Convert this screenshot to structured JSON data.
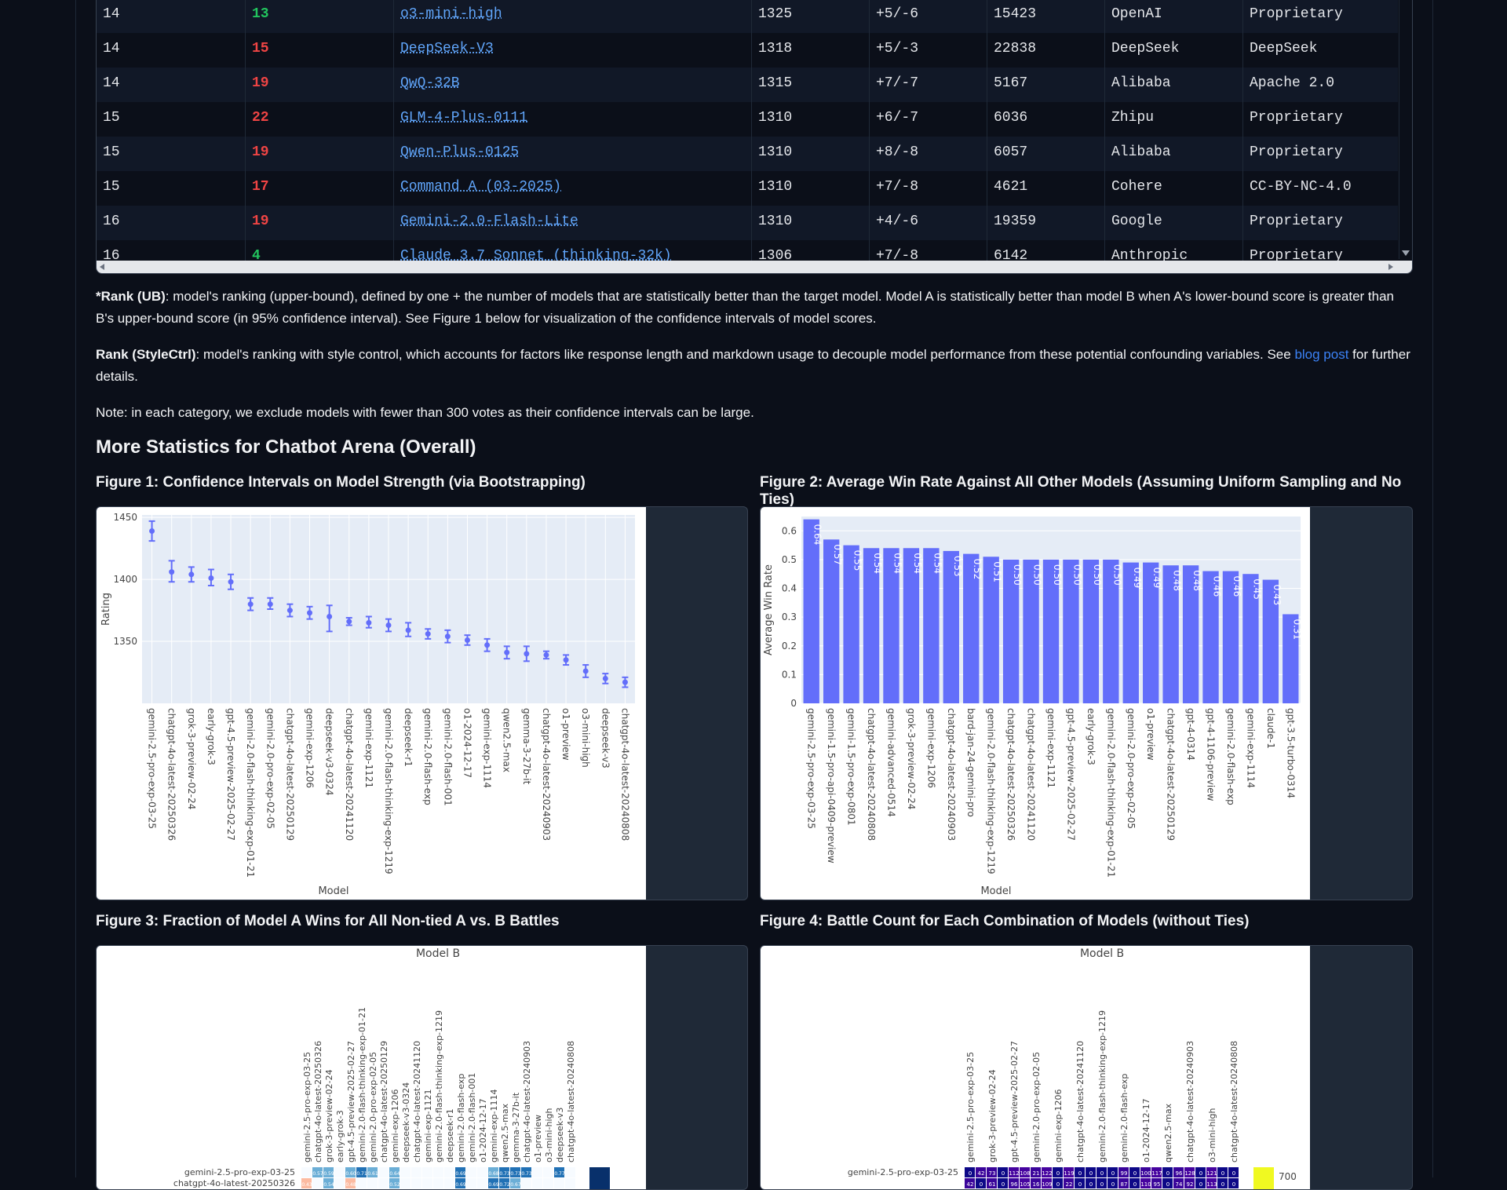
{
  "table": {
    "rows": [
      {
        "rank": "14",
        "rank_style": "13",
        "rank_style_color": "#22c55e",
        "model": "o3-mini-high",
        "score": "1325",
        "ci": "+5/-6",
        "votes": "15423",
        "org": "OpenAI",
        "license": "Proprietary"
      },
      {
        "rank": "14",
        "rank_style": "15",
        "rank_style_color": "#ef4444",
        "model": "DeepSeek-V3",
        "score": "1318",
        "ci": "+5/-3",
        "votes": "22838",
        "org": "DeepSeek",
        "license": "DeepSeek"
      },
      {
        "rank": "14",
        "rank_style": "19",
        "rank_style_color": "#ef4444",
        "model": "QwQ-32B",
        "score": "1315",
        "ci": "+7/-7",
        "votes": "5167",
        "org": "Alibaba",
        "license": "Apache 2.0"
      },
      {
        "rank": "15",
        "rank_style": "22",
        "rank_style_color": "#ef4444",
        "model": "GLM-4-Plus-0111",
        "score": "1310",
        "ci": "+6/-7",
        "votes": "6036",
        "org": "Zhipu",
        "license": "Proprietary"
      },
      {
        "rank": "15",
        "rank_style": "19",
        "rank_style_color": "#ef4444",
        "model": "Qwen-Plus-0125",
        "score": "1310",
        "ci": "+8/-8",
        "votes": "6057",
        "org": "Alibaba",
        "license": "Proprietary"
      },
      {
        "rank": "15",
        "rank_style": "17",
        "rank_style_color": "#ef4444",
        "model": "Command A (03-2025)",
        "score": "1310",
        "ci": "+7/-8",
        "votes": "4621",
        "org": "Cohere",
        "license": "CC-BY-NC-4.0"
      },
      {
        "rank": "16",
        "rank_style": "19",
        "rank_style_color": "#ef4444",
        "model": "Gemini-2.0-Flash-Lite",
        "score": "1310",
        "ci": "+4/-6",
        "votes": "19359",
        "org": "Google",
        "license": "Proprietary"
      },
      {
        "rank": "16",
        "rank_style": "4",
        "rank_style_color": "#22c55e",
        "model": "Claude 3.7 Sonnet (thinking-32k)",
        "score": "1306",
        "ci": "+7/-8",
        "votes": "6142",
        "org": "Anthropic",
        "license": "Proprietary"
      }
    ]
  },
  "notes": {
    "rank_ub_label": "*Rank (UB)",
    "rank_ub_text": ": model's ranking (upper-bound), defined by one + the number of models that are statistically better than the target model. Model A is statistically better than model B when A's lower-bound score is greater than B's upper-bound score (in 95% confidence interval). See Figure 1 below for visualization of the confidence intervals of model scores.",
    "rank_style_label": "Rank (StyleCtrl)",
    "rank_style_text": ": model's ranking with style control, which accounts for factors like response length and markdown usage to decouple model performance from these potential confounding variables. See ",
    "blog_link": "blog post",
    "rank_style_tail": " for further details.",
    "note": "Note: in each category, we exclude models with fewer than 300 votes as their confidence intervals can be large."
  },
  "section_title": "More Statistics for Chatbot Arena (Overall)",
  "figures": {
    "fig1_title": "Figure 1: Confidence Intervals on Model Strength (via Bootstrapping)",
    "fig2_title": "Figure 2: Average Win Rate Against All Other Models (Assuming Uniform Sampling and No Ties)",
    "fig3_title": "Figure 3: Fraction of Model A Wins for All Non-tied A vs. B Battles",
    "fig4_title": "Figure 4: Battle Count for Each Combination of Models (without Ties)"
  },
  "chart_data": [
    {
      "type": "scatter",
      "title": "",
      "xlabel": "Model",
      "ylabel": "Rating",
      "ylim": [
        1300,
        1452
      ],
      "yticks": [
        1350,
        1400,
        1450
      ],
      "grid": true,
      "categories": [
        "gemini-2.5-pro-exp-03-25",
        "chatgpt-4o-latest-20250326",
        "grok-3-preview-02-24",
        "early-grok-3",
        "gpt-4.5-preview-2025-02-27",
        "gemini-2.0-flash-thinking-exp-01-21",
        "gemini-2.0-pro-exp-02-05",
        "chatgpt-4o-latest-20250129",
        "gemini-exp-1206",
        "deepseek-v3-0324",
        "chatgpt-4o-latest-20241120",
        "gemini-exp-1121",
        "gemini-2.0-flash-thinking-exp-1219",
        "deepseek-r1",
        "gemini-2.0-flash-exp",
        "gemini-2.0-flash-001",
        "o1-2024-12-17",
        "gemini-exp-1114",
        "qwen2.5-max",
        "gemma-3-27b-it",
        "chatgpt-4o-latest-20240903",
        "o1-preview",
        "o3-mini-high",
        "deepseek-v3",
        "chatgpt-4o-latest-20240808"
      ],
      "y": [
        1439,
        1406,
        1404,
        1401,
        1398,
        1380,
        1380,
        1375,
        1373,
        1370,
        1366,
        1365,
        1363,
        1359,
        1356,
        1354,
        1351,
        1347,
        1341,
        1340,
        1339,
        1335,
        1326,
        1320,
        1317
      ],
      "upper": [
        1447,
        1415,
        1410,
        1408,
        1404,
        1385,
        1385,
        1380,
        1378,
        1379,
        1369,
        1370,
        1368,
        1365,
        1360,
        1359,
        1355,
        1352,
        1346,
        1346,
        1342,
        1339,
        1331,
        1324,
        1321
      ],
      "lower": [
        1431,
        1398,
        1398,
        1395,
        1392,
        1375,
        1376,
        1370,
        1368,
        1358,
        1363,
        1361,
        1358,
        1354,
        1352,
        1349,
        1347,
        1342,
        1336,
        1334,
        1336,
        1331,
        1321,
        1316,
        1313
      ]
    },
    {
      "type": "bar",
      "title": "",
      "xlabel": "Model",
      "ylabel": "Average Win Rate",
      "ylim": [
        0,
        0.65
      ],
      "yticks": [
        0,
        0.1,
        0.2,
        0.3,
        0.4,
        0.5,
        0.6
      ],
      "categories": [
        "gemini-2.5-pro-exp-03-25",
        "gemini-1.5-pro-api-0409-preview",
        "gemini-1.5-pro-exp-0801",
        "chatgpt-4o-latest-20240808",
        "gemini-advanced-0514",
        "grok-3-preview-02-24",
        "gemini-exp-1206",
        "chatgpt-4o-latest-20240903",
        "bard-jan-24-gemini-pro",
        "gemini-2.0-flash-thinking-exp-1219",
        "chatgpt-4o-latest-20250326",
        "chatgpt-4o-latest-20241120",
        "gemini-exp-1121",
        "gpt-4.5-preview-2025-02-27",
        "early-grok-3",
        "gemini-2.0-flash-thinking-exp-01-21",
        "gemini-2.0-pro-exp-02-05",
        "o1-preview",
        "chatgpt-4o-latest-20250129",
        "gpt-4-0314",
        "gpt-4-1106-preview",
        "gemini-2.0-flash-exp",
        "gemini-exp-1114",
        "claude-1",
        "gpt-3.5-turbo-0314"
      ],
      "values": [
        0.64,
        0.57,
        0.55,
        0.54,
        0.54,
        0.54,
        0.54,
        0.53,
        0.52,
        0.51,
        0.5,
        0.5,
        0.5,
        0.5,
        0.5,
        0.5,
        0.49,
        0.49,
        0.48,
        0.48,
        0.46,
        0.46,
        0.45,
        0.43,
        0.31
      ],
      "labels": [
        "0.64",
        "0.57",
        "0.55",
        "0.54",
        "0.54",
        "0.54",
        "0.54",
        "0.53",
        "0.52",
        "0.51",
        "0.50",
        "0.50",
        "0.50",
        "0.50",
        "0.50",
        "0.50",
        "0.49",
        "0.49",
        "0.48",
        "0.48",
        "0.46",
        "0.46",
        "0.45",
        "0.43",
        "0.31"
      ]
    },
    {
      "type": "heatmap",
      "title": "",
      "xlabel": "Model B",
      "x_categories": [
        "gemini-2.5-pro-exp-03-25",
        "chatgpt-4o-latest-20250326",
        "grok-3-preview-02-24",
        "early-grok-3",
        "gpt-4.5-preview-2025-02-27",
        "gemini-2.0-flash-thinking-exp-01-21",
        "gemini-2.0-pro-exp-02-05",
        "chatgpt-4o-latest-20250129",
        "gemini-exp-1206",
        "deepseek-v3-0324",
        "chatgpt-4o-latest-20241120",
        "gemini-exp-1121",
        "gemini-2.0-flash-thinking-exp-1219",
        "deepseek-r1",
        "gemini-2.0-flash-exp",
        "gemini-2.0-flash-001",
        "o1-2024-12-17",
        "gemini-exp-1114",
        "qwen2.5-max",
        "gemma-3-27b-it",
        "chatgpt-4o-latest-20240903",
        "o1-preview",
        "o3-mini-high",
        "deepseek-v3",
        "chatgpt-4o-latest-20240808"
      ],
      "y_categories": [
        "gemini-2.5-pro-exp-03-25",
        "chatgpt-4o-latest-20250326"
      ],
      "cell_labels": [
        [
          "",
          "0.57",
          "0.59",
          "",
          "0.60",
          "0.71",
          "0.61",
          "",
          "0.64",
          "",
          "",
          "",
          "",
          "",
          "0.69",
          "",
          "",
          "0.68",
          "0.73",
          "0.73",
          "0.73",
          "",
          "",
          "0.77",
          ""
        ],
        [
          "0.43",
          "",
          "0.54",
          "",
          "0.48",
          "",
          "",
          "",
          "0.52",
          "",
          "",
          "",
          "",
          "",
          "0.69",
          "",
          "",
          "0.69",
          "0.72",
          "0.67",
          "",
          "",
          "",
          "",
          ""
        ]
      ]
    },
    {
      "type": "heatmap",
      "title": "",
      "xlabel": "Model B",
      "x_categories": [
        "gemini-2.5-pro-exp-03-25",
        "grok-3-preview-02-24",
        "gpt-4.5-preview-2025-02-27",
        "gemini-2.0-pro-exp-02-05",
        "gemini-exp-1206",
        "chatgpt-4o-latest-20241120",
        "gemini-2.0-flash-thinking-exp-1219",
        "gemini-2.0-flash-exp",
        "o1-2024-12-17",
        "qwen2.5-max",
        "chatgpt-4o-latest-20240903",
        "o3-mini-high",
        "chatgpt-4o-latest-20240808"
      ],
      "y_categories": [
        "gemini-2.5-pro-exp-03-25"
      ],
      "cell_labels": [
        [
          "0",
          "42",
          "73",
          "0",
          "112",
          "108",
          "21",
          "122",
          "0",
          "119",
          "0",
          "0",
          "0",
          "0",
          "99",
          "0",
          "100",
          "117",
          "0",
          "96",
          "128",
          "0",
          "121",
          "0",
          "0"
        ],
        [
          "42",
          "0",
          "61",
          "0",
          "96",
          "105",
          "16",
          "109",
          "0",
          "22",
          "0",
          "0",
          "0",
          "0",
          "87",
          "0",
          "110",
          "95",
          "0",
          "74",
          "92",
          "0",
          "113",
          "0",
          "0"
        ]
      ],
      "colorbar_tick": "700"
    }
  ]
}
